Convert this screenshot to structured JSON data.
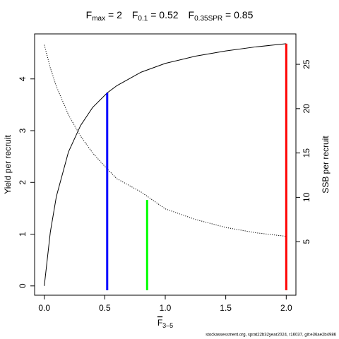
{
  "chart_data": {
    "type": "line",
    "title_parts": [
      {
        "main": "F",
        "sub": "max",
        "value": 2
      },
      {
        "main": "F",
        "sub": "0.1",
        "value": 0.52
      },
      {
        "main": "F",
        "sub": "0.35SPR",
        "value": 0.85
      }
    ],
    "xlabel_main": "F",
    "xlabel_sub": "3–5",
    "ylabel": "Yield per recruit",
    "y2label": "SSB per recruit",
    "footer": "stockassessment.org, sprat22b32year2024, r16037, git:e36ae2b4986",
    "x": [
      0,
      0.05,
      0.1,
      0.2,
      0.3,
      0.4,
      0.52,
      0.6,
      0.8,
      1,
      1.25,
      1.5,
      1.75,
      2
    ],
    "series": [
      {
        "name": "Yield per recruit",
        "color": "#000000",
        "dash": "solid",
        "values": [
          0,
          1.04,
          1.73,
          2.59,
          3.1,
          3.45,
          3.73,
          3.87,
          4.13,
          4.3,
          4.44,
          4.54,
          4.62,
          4.68
        ]
      },
      {
        "name": "SSB per recruit",
        "color": "#000000",
        "dash": "dotted",
        "axis": "y2",
        "values": [
          27.2,
          24.6,
          22.5,
          19.3,
          16.9,
          15.0,
          13.2,
          12.1,
          10.6,
          8.7,
          7.5,
          6.6,
          6.0,
          5.6
        ]
      }
    ],
    "reference_lines": [
      {
        "x": 2,
        "top": 4.68,
        "axis": "y",
        "color": "#ff0000"
      },
      {
        "x": 0.52,
        "top": 3.73,
        "axis": "y",
        "color": "#0000ff"
      },
      {
        "x": 0.85,
        "top": 9.7,
        "axis": "y2",
        "color": "#00ff00"
      }
    ],
    "xlim": [
      -0.08,
      2.08
    ],
    "xticks": [
      {
        "value": 0,
        "label": "0.0"
      },
      {
        "value": 0.5,
        "label": "0.5"
      },
      {
        "value": 1,
        "label": "1.0"
      },
      {
        "value": 1.5,
        "label": "1.5"
      },
      {
        "value": 2,
        "label": "2.0"
      }
    ],
    "ylim": [
      -0.18,
      4.87
    ],
    "yticks": [
      0,
      1,
      2,
      3,
      4
    ],
    "y2lim": [
      -1.04,
      28.43
    ],
    "y2ticks": [
      5,
      10,
      15,
      20,
      25
    ]
  }
}
